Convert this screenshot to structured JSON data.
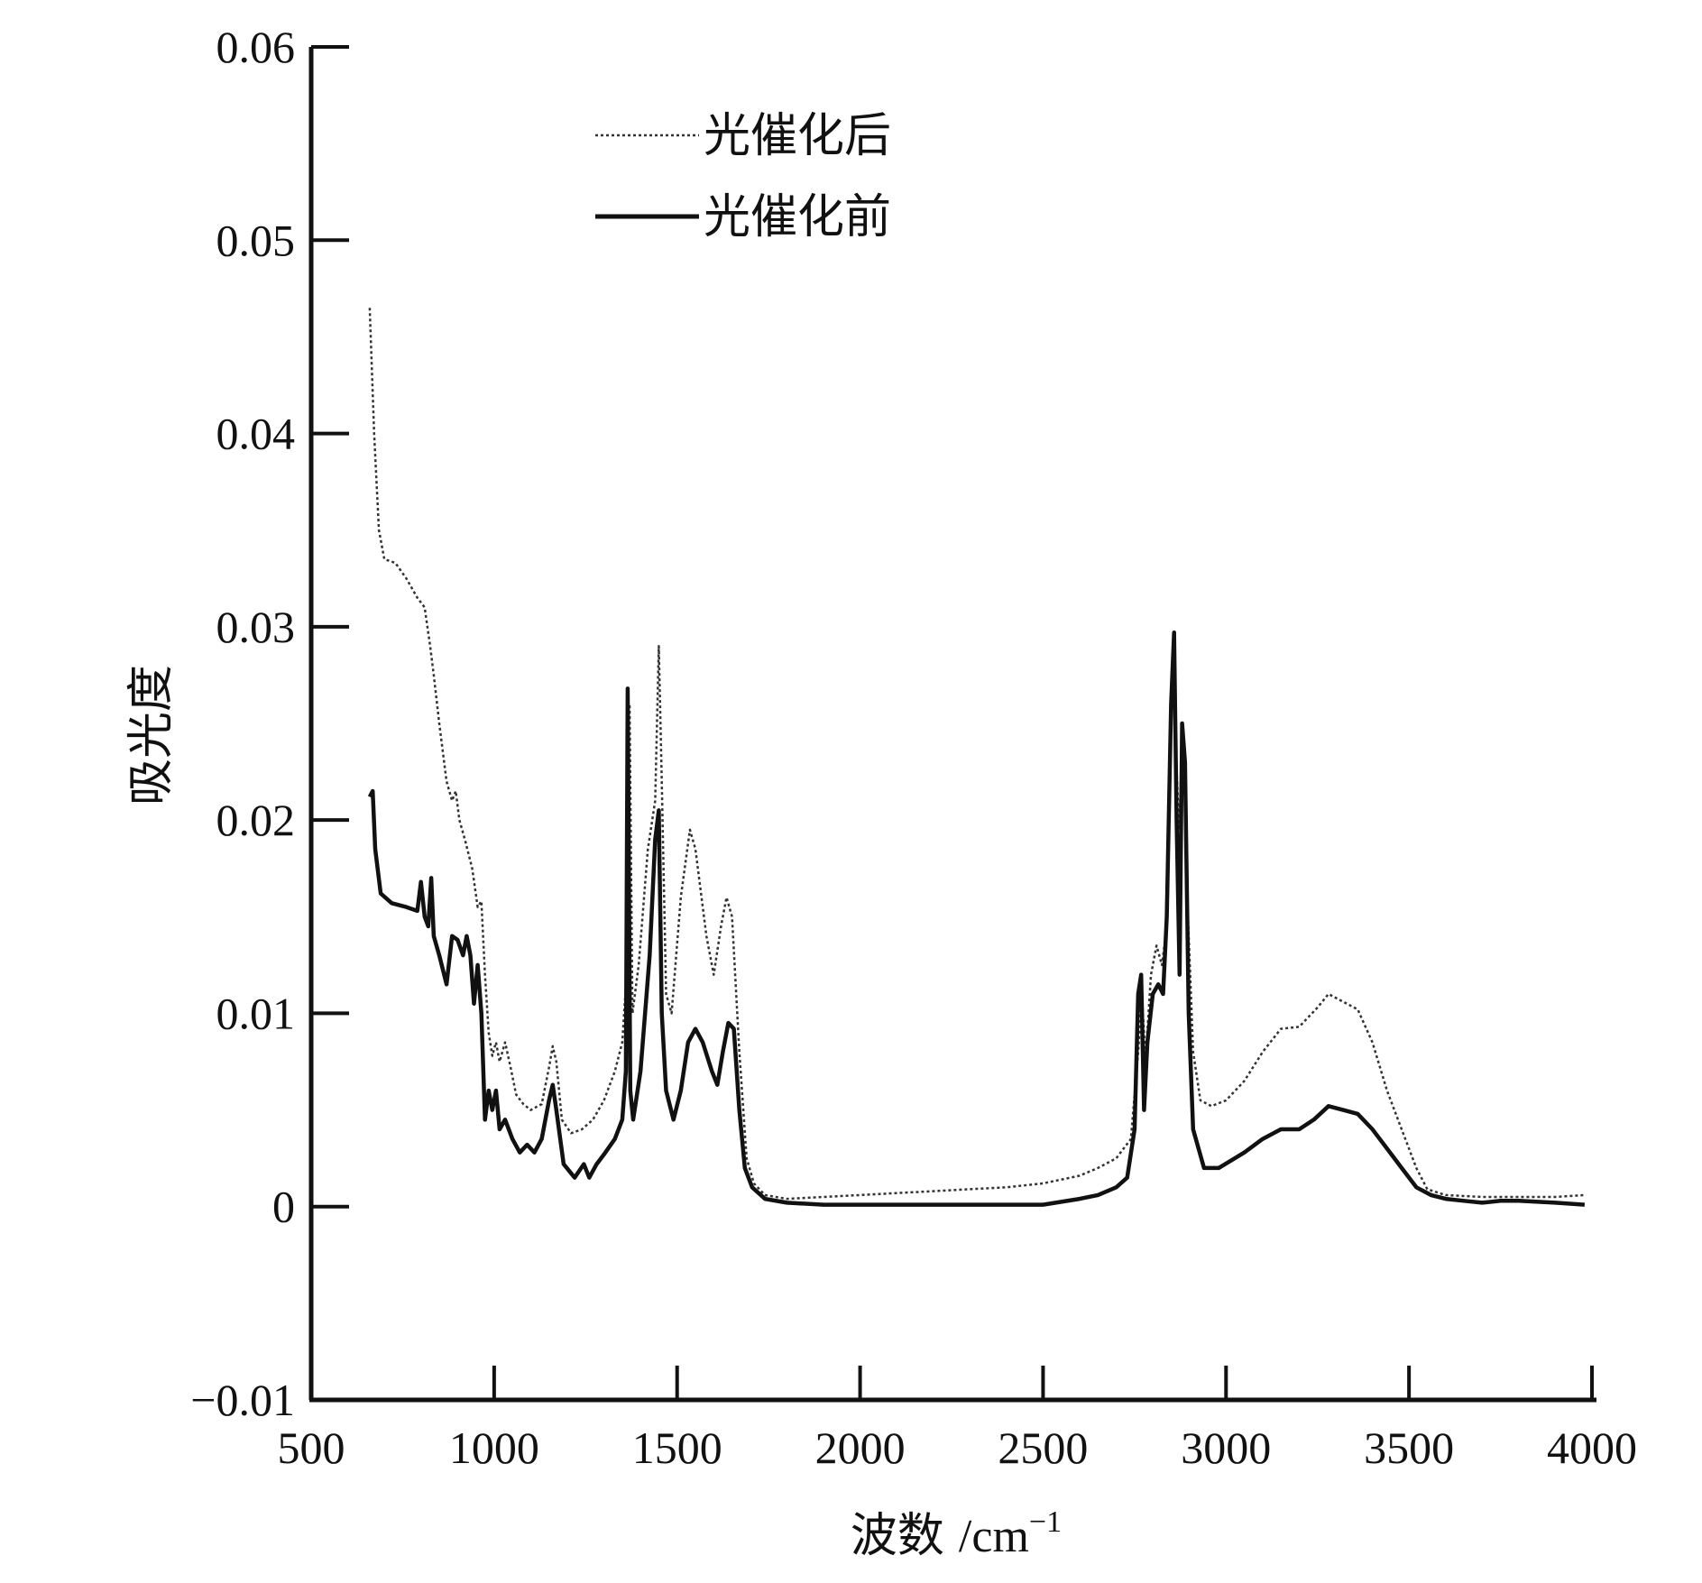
{
  "chart_data": {
    "type": "line",
    "title": "",
    "xlabel": "波数",
    "xlabel_unit": "/cm",
    "xlabel_unit_exp": "−1",
    "ylabel": "吸光度",
    "xlim": [
      500,
      4000
    ],
    "ylim": [
      -0.01,
      0.06
    ],
    "x_ticks": [
      500,
      1000,
      1500,
      2000,
      2500,
      3000,
      3500,
      4000
    ],
    "x_tick_labels": [
      "500",
      "1000",
      "1500",
      "2000",
      "2500",
      "3000",
      "3500",
      "4000"
    ],
    "y_ticks": [
      -0.01,
      0,
      0.01,
      0.02,
      0.03,
      0.04,
      0.05,
      0.06
    ],
    "y_tick_labels": [
      "−0.01",
      "0",
      "0.01",
      "0.02",
      "0.03",
      "0.04",
      "0.05",
      "0.06"
    ],
    "grid": false,
    "legend": "top-left",
    "series": [
      {
        "name": "光催化后",
        "style": "dotted",
        "color": "#333333",
        "points": [
          [
            660,
            0.0465
          ],
          [
            672,
            0.04
          ],
          [
            685,
            0.035
          ],
          [
            700,
            0.0335
          ],
          [
            730,
            0.0333
          ],
          [
            760,
            0.0325
          ],
          [
            790,
            0.0315
          ],
          [
            810,
            0.031
          ],
          [
            825,
            0.029
          ],
          [
            835,
            0.0275
          ],
          [
            850,
            0.025
          ],
          [
            870,
            0.022
          ],
          [
            885,
            0.021
          ],
          [
            895,
            0.0215
          ],
          [
            905,
            0.02
          ],
          [
            920,
            0.019
          ],
          [
            940,
            0.0175
          ],
          [
            955,
            0.0155
          ],
          [
            965,
            0.0158
          ],
          [
            975,
            0.012
          ],
          [
            985,
            0.009
          ],
          [
            995,
            0.0078
          ],
          [
            1005,
            0.0085
          ],
          [
            1015,
            0.0075
          ],
          [
            1030,
            0.0085
          ],
          [
            1045,
            0.0072
          ],
          [
            1060,
            0.0058
          ],
          [
            1080,
            0.0053
          ],
          [
            1100,
            0.005
          ],
          [
            1130,
            0.0053
          ],
          [
            1150,
            0.0072
          ],
          [
            1160,
            0.0083
          ],
          [
            1170,
            0.0075
          ],
          [
            1185,
            0.0045
          ],
          [
            1210,
            0.0038
          ],
          [
            1240,
            0.004
          ],
          [
            1270,
            0.0045
          ],
          [
            1300,
            0.0055
          ],
          [
            1330,
            0.007
          ],
          [
            1350,
            0.0085
          ],
          [
            1362,
            0.012
          ],
          [
            1370,
            0.026
          ],
          [
            1378,
            0.01
          ],
          [
            1395,
            0.0125
          ],
          [
            1420,
            0.0185
          ],
          [
            1440,
            0.021
          ],
          [
            1450,
            0.029
          ],
          [
            1458,
            0.022
          ],
          [
            1470,
            0.011
          ],
          [
            1485,
            0.01
          ],
          [
            1510,
            0.016
          ],
          [
            1535,
            0.0195
          ],
          [
            1550,
            0.0185
          ],
          [
            1580,
            0.014
          ],
          [
            1600,
            0.012
          ],
          [
            1620,
            0.0145
          ],
          [
            1635,
            0.016
          ],
          [
            1650,
            0.015
          ],
          [
            1670,
            0.008
          ],
          [
            1690,
            0.0025
          ],
          [
            1710,
            0.0012
          ],
          [
            1740,
            0.0006
          ],
          [
            1800,
            0.0004
          ],
          [
            1900,
            0.0005
          ],
          [
            2000,
            0.0006
          ],
          [
            2100,
            0.0007
          ],
          [
            2200,
            0.0008
          ],
          [
            2300,
            0.0009
          ],
          [
            2400,
            0.001
          ],
          [
            2500,
            0.0012
          ],
          [
            2600,
            0.0016
          ],
          [
            2650,
            0.002
          ],
          [
            2700,
            0.0025
          ],
          [
            2740,
            0.0035
          ],
          [
            2760,
            0.008
          ],
          [
            2770,
            0.011
          ],
          [
            2780,
            0.0075
          ],
          [
            2795,
            0.012
          ],
          [
            2810,
            0.0135
          ],
          [
            2825,
            0.0125
          ],
          [
            2835,
            0.014
          ],
          [
            2848,
            0.025
          ],
          [
            2856,
            0.028
          ],
          [
            2864,
            0.023
          ],
          [
            2872,
            0.0195
          ],
          [
            2880,
            0.024
          ],
          [
            2888,
            0.0225
          ],
          [
            2896,
            0.015
          ],
          [
            2910,
            0.008
          ],
          [
            2930,
            0.0055
          ],
          [
            2960,
            0.0052
          ],
          [
            3000,
            0.0055
          ],
          [
            3050,
            0.0065
          ],
          [
            3100,
            0.008
          ],
          [
            3150,
            0.0092
          ],
          [
            3200,
            0.0093
          ],
          [
            3250,
            0.0103
          ],
          [
            3280,
            0.011
          ],
          [
            3320,
            0.0106
          ],
          [
            3360,
            0.0102
          ],
          [
            3400,
            0.0085
          ],
          [
            3440,
            0.006
          ],
          [
            3480,
            0.004
          ],
          [
            3520,
            0.002
          ],
          [
            3550,
            0.0009
          ],
          [
            3600,
            0.0006
          ],
          [
            3700,
            0.0005
          ],
          [
            3800,
            0.0005
          ],
          [
            3900,
            0.0005
          ],
          [
            3980,
            0.0006
          ]
        ]
      },
      {
        "name": "光催化前",
        "style": "solid",
        "color": "#111111",
        "points": [
          [
            660,
            0.0212
          ],
          [
            668,
            0.0215
          ],
          [
            675,
            0.0185
          ],
          [
            690,
            0.0162
          ],
          [
            720,
            0.0157
          ],
          [
            760,
            0.0155
          ],
          [
            790,
            0.0153
          ],
          [
            800,
            0.0168
          ],
          [
            810,
            0.015
          ],
          [
            820,
            0.0145
          ],
          [
            828,
            0.017
          ],
          [
            835,
            0.014
          ],
          [
            850,
            0.013
          ],
          [
            870,
            0.0115
          ],
          [
            885,
            0.014
          ],
          [
            900,
            0.0138
          ],
          [
            915,
            0.013
          ],
          [
            925,
            0.014
          ],
          [
            935,
            0.013
          ],
          [
            945,
            0.0105
          ],
          [
            955,
            0.0125
          ],
          [
            965,
            0.01
          ],
          [
            975,
            0.0045
          ],
          [
            985,
            0.006
          ],
          [
            995,
            0.005
          ],
          [
            1005,
            0.006
          ],
          [
            1015,
            0.004
          ],
          [
            1030,
            0.0045
          ],
          [
            1050,
            0.0035
          ],
          [
            1070,
            0.0028
          ],
          [
            1090,
            0.0032
          ],
          [
            1110,
            0.0028
          ],
          [
            1130,
            0.0035
          ],
          [
            1150,
            0.0055
          ],
          [
            1160,
            0.0063
          ],
          [
            1170,
            0.005
          ],
          [
            1190,
            0.0022
          ],
          [
            1220,
            0.0015
          ],
          [
            1245,
            0.0022
          ],
          [
            1260,
            0.0015
          ],
          [
            1280,
            0.0022
          ],
          [
            1300,
            0.0027
          ],
          [
            1330,
            0.0035
          ],
          [
            1350,
            0.0045
          ],
          [
            1360,
            0.007
          ],
          [
            1365,
            0.0268
          ],
          [
            1372,
            0.006
          ],
          [
            1380,
            0.0045
          ],
          [
            1400,
            0.007
          ],
          [
            1425,
            0.013
          ],
          [
            1440,
            0.019
          ],
          [
            1450,
            0.0205
          ],
          [
            1458,
            0.01
          ],
          [
            1470,
            0.006
          ],
          [
            1490,
            0.0045
          ],
          [
            1510,
            0.006
          ],
          [
            1530,
            0.0085
          ],
          [
            1550,
            0.0092
          ],
          [
            1570,
            0.0085
          ],
          [
            1595,
            0.007
          ],
          [
            1610,
            0.0063
          ],
          [
            1625,
            0.008
          ],
          [
            1640,
            0.0095
          ],
          [
            1655,
            0.0092
          ],
          [
            1670,
            0.005
          ],
          [
            1685,
            0.002
          ],
          [
            1705,
            0.001
          ],
          [
            1740,
            0.0004
          ],
          [
            1800,
            0.0002
          ],
          [
            1900,
            0.0001
          ],
          [
            2000,
            0.0001
          ],
          [
            2100,
            0.0001
          ],
          [
            2200,
            0.0001
          ],
          [
            2300,
            0.0001
          ],
          [
            2400,
            0.0001
          ],
          [
            2500,
            0.0001
          ],
          [
            2600,
            0.0004
          ],
          [
            2650,
            0.0006
          ],
          [
            2700,
            0.001
          ],
          [
            2730,
            0.0015
          ],
          [
            2750,
            0.004
          ],
          [
            2760,
            0.011
          ],
          [
            2768,
            0.012
          ],
          [
            2776,
            0.005
          ],
          [
            2785,
            0.0085
          ],
          [
            2800,
            0.011
          ],
          [
            2815,
            0.0115
          ],
          [
            2828,
            0.011
          ],
          [
            2838,
            0.015
          ],
          [
            2850,
            0.026
          ],
          [
            2858,
            0.0297
          ],
          [
            2865,
            0.02
          ],
          [
            2873,
            0.012
          ],
          [
            2880,
            0.025
          ],
          [
            2888,
            0.023
          ],
          [
            2898,
            0.01
          ],
          [
            2910,
            0.004
          ],
          [
            2940,
            0.002
          ],
          [
            2980,
            0.002
          ],
          [
            3050,
            0.0028
          ],
          [
            3100,
            0.0035
          ],
          [
            3150,
            0.004
          ],
          [
            3200,
            0.004
          ],
          [
            3240,
            0.0045
          ],
          [
            3280,
            0.0052
          ],
          [
            3320,
            0.005
          ],
          [
            3360,
            0.0048
          ],
          [
            3400,
            0.004
          ],
          [
            3440,
            0.003
          ],
          [
            3480,
            0.002
          ],
          [
            3520,
            0.001
          ],
          [
            3560,
            0.0006
          ],
          [
            3600,
            0.0004
          ],
          [
            3650,
            0.0003
          ],
          [
            3700,
            0.0002
          ],
          [
            3750,
            0.0003
          ],
          [
            3800,
            0.0003
          ],
          [
            3900,
            0.0002
          ],
          [
            3980,
            0.0001
          ]
        ]
      }
    ]
  }
}
